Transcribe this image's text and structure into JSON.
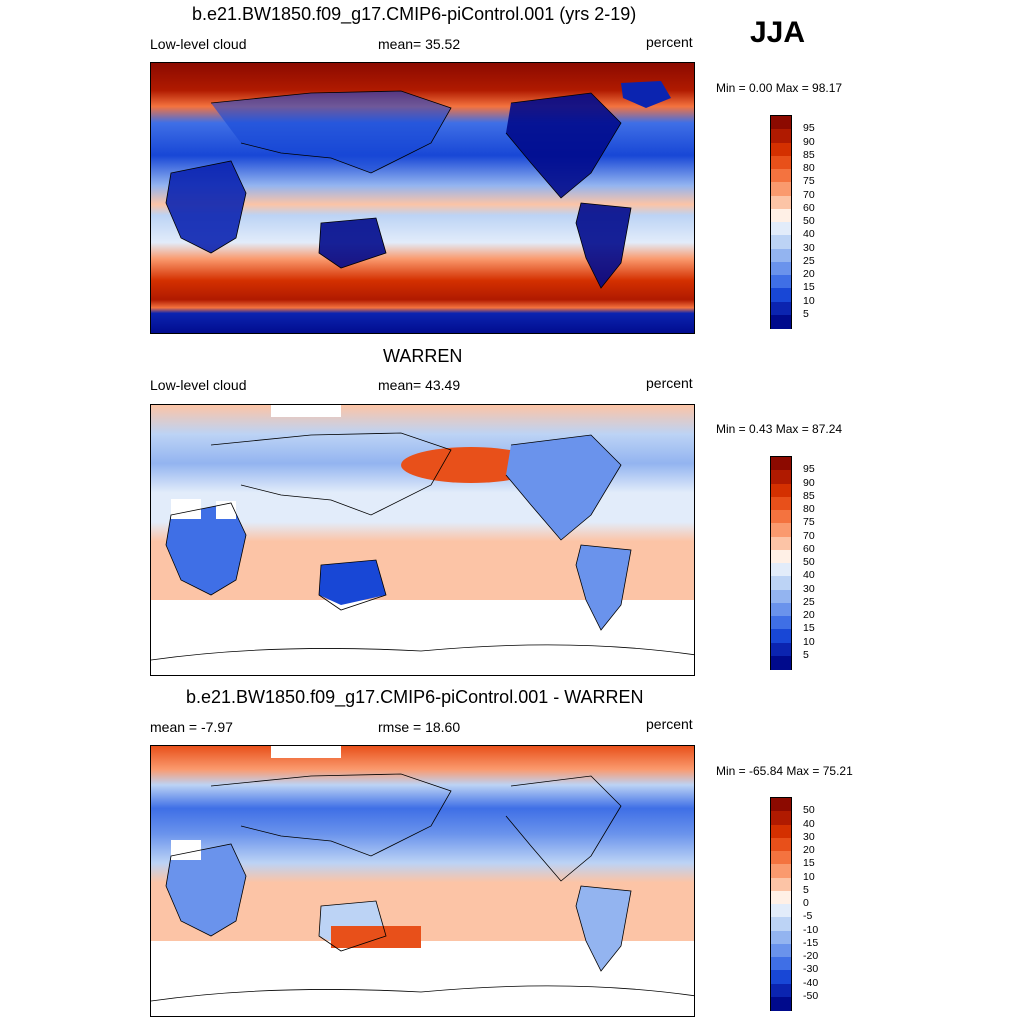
{
  "season": "JJA",
  "panels": [
    {
      "title": "b.e21.BW1850.f09_g17.CMIP6-piControl.001 (yrs 2-19)",
      "left_label": "Low-level cloud",
      "center_label": "mean=  35.52",
      "units": "percent",
      "minmax": "Min =   0.00 Max =  98.17",
      "colorbar_labels": [
        "95",
        "90",
        "85",
        "80",
        "75",
        "70",
        "60",
        "50",
        "40",
        "30",
        "25",
        "20",
        "15",
        "10",
        "5"
      ]
    },
    {
      "title": "WARREN",
      "left_label": "Low-level cloud",
      "center_label": "mean=  43.49",
      "units": "percent",
      "minmax": "Min =   0.43 Max =  87.24",
      "colorbar_labels": [
        "95",
        "90",
        "85",
        "80",
        "75",
        "70",
        "60",
        "50",
        "40",
        "30",
        "25",
        "20",
        "15",
        "10",
        "5"
      ]
    },
    {
      "title": "b.e21.BW1850.f09_g17.CMIP6-piControl.001 - WARREN",
      "left_label": "mean =  -7.97",
      "center_label": "rmse =  18.60",
      "units": "percent",
      "minmax": "Min = -65.84 Max =  75.21",
      "colorbar_labels": [
        "50",
        "40",
        "30",
        "20",
        "15",
        "10",
        "5",
        "0",
        "-5",
        "-10",
        "-15",
        "-20",
        "-30",
        "-40",
        "-50"
      ]
    }
  ],
  "palette": [
    "#8c0a00",
    "#b01a00",
    "#d43000",
    "#e8501a",
    "#f4733f",
    "#fa9a6e",
    "#fcc4a6",
    "#fff0e6",
    "#e2ecfa",
    "#bcd3f5",
    "#93b4f0",
    "#6a93ec",
    "#3f6fe6",
    "#1847d6",
    "#0b24b0",
    "#000a8c"
  ]
}
